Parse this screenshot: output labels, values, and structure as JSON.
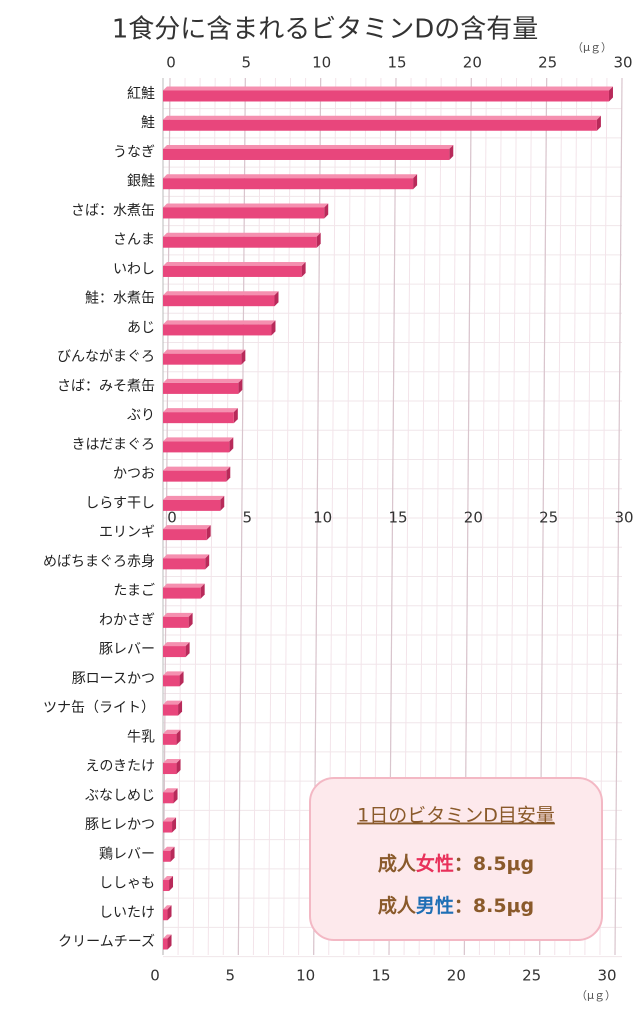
{
  "chart_data": {
    "type": "bar",
    "orientation": "horizontal",
    "title": "1食分に含まれるビタミンDの含有量",
    "x_unit": "（μｇ）",
    "categories": [
      "紅鮭",
      "鮭",
      "うなぎ",
      "銀鮭",
      "さば：水煮缶",
      "さんま",
      "いわし",
      "鮭：水煮缶",
      "あじ",
      "びんながまぐろ",
      "さば：みそ煮缶",
      "ぶり",
      "きはだまぐろ",
      "かつお",
      "しらす干し",
      "エリンギ",
      "めばちまぐろ赤身",
      "たまご",
      "わかさぎ",
      "豚レバー",
      "豚ロースかつ",
      "ツナ缶（ライト）",
      "牛乳",
      "えのきたけ",
      "ぶなしめじ",
      "豚ヒレかつ",
      "鶏レバー",
      "ししゃも",
      "しいたけ",
      "クリームチーズ"
    ],
    "values": [
      29.6,
      28.8,
      19.0,
      16.6,
      10.7,
      10.2,
      9.2,
      7.4,
      7.2,
      5.2,
      5.0,
      4.7,
      4.4,
      4.2,
      3.8,
      2.9,
      2.8,
      2.5,
      1.7,
      1.5,
      1.1,
      1.0,
      0.9,
      0.9,
      0.7,
      0.6,
      0.5,
      0.4,
      0.3,
      0.3
    ],
    "color": "#e8467c",
    "xlim": [
      0,
      30
    ],
    "xticks": [
      0,
      5,
      10,
      15,
      20,
      25,
      30
    ],
    "grid": true
  },
  "info_box": {
    "title": "1日のビタミンD目安量",
    "lines": [
      {
        "prefix": "成人",
        "highlight": "女性",
        "highlight_color": "#e8305a",
        "suffix": "：8.5μg"
      },
      {
        "prefix": "成人",
        "highlight": "男性",
        "highlight_color": "#1f6fb5",
        "suffix": "：8.5μg"
      }
    ]
  }
}
